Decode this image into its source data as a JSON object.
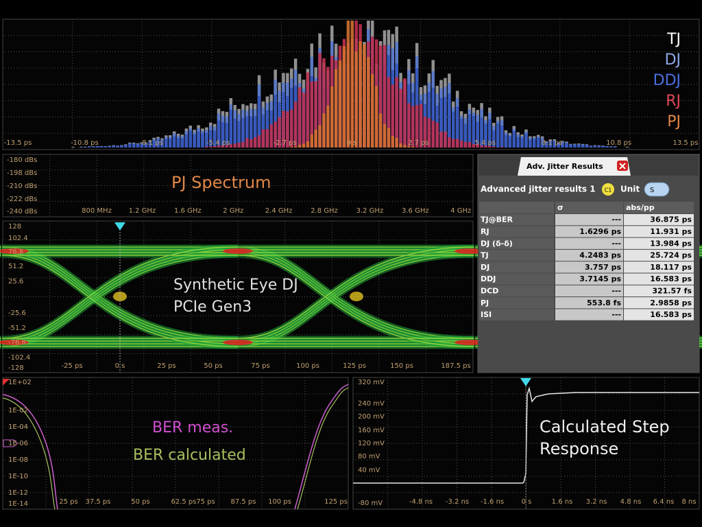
{
  "histogram": {
    "legend": [
      "TJ",
      "DJ",
      "DDJ",
      "RJ",
      "PJ"
    ],
    "x_ticks": [
      "-13.5 ps",
      "-10.8 ps",
      "-8.1 ps",
      "-5.4 ps",
      "-2.7 ps",
      "0 s",
      "2.7 ps",
      "5.4 ps",
      "8.1 ps",
      "10.8 ps",
      "13.5 ps"
    ]
  },
  "pj_spectrum": {
    "title": "PJ Spectrum",
    "y_ticks": [
      "-180 dBs",
      "-198 dBs",
      "-210 dBs",
      "-222 dBs",
      "-240 dBs"
    ],
    "x_ticks": [
      "800 MHz",
      "1.2 GHz",
      "1.6 GHz",
      "2 GHz",
      "2.4 GHz",
      "2.8 GHz",
      "3.2 GHz",
      "3.6 GHz",
      "4 GHz"
    ]
  },
  "eye": {
    "labels": [
      "Synthetic Eye DJ",
      "PCIe Gen3"
    ],
    "y_ticks": [
      "128",
      "102.4",
      "76.8",
      "51.2",
      "25.6",
      "-25.6",
      "-51.2",
      "-76.8",
      "-102.4",
      "-128"
    ],
    "x_ticks": [
      "-25 ps",
      "0 s",
      "25 ps",
      "50 ps",
      "75 ps",
      "100 ps",
      "125 ps",
      "150 ps",
      "187.5 ps"
    ]
  },
  "results": {
    "tab": "Adv. Jitter Results",
    "heading": "Advanced jitter results 1",
    "channel": "C1",
    "unit_label": "Unit",
    "unit": "S",
    "columns": [
      "σ",
      "abs/pp"
    ],
    "rows": [
      [
        "TJ@BER",
        "---",
        "36.875 ps"
      ],
      [
        "RJ",
        "1.6296 ps",
        "11.931 ps"
      ],
      [
        "DJ (δ-δ)",
        "---",
        "13.984 ps"
      ],
      [
        "TJ",
        "4.2483 ps",
        "25.724 ps"
      ],
      [
        "DJ",
        "3.757 ps",
        "18.117 ps"
      ],
      [
        "DDJ",
        "3.7145 ps",
        "16.583 ps"
      ],
      [
        "DCD",
        "---",
        "321.57 fs"
      ],
      [
        "PJ",
        "553.8 fs",
        "2.9858 ps"
      ],
      [
        "ISI",
        "---",
        "16.583 ps"
      ]
    ]
  },
  "ber": {
    "labels": [
      "BER meas.",
      "BER calculated"
    ],
    "y_ticks": [
      "1E+02",
      "1E-02",
      "1E-04",
      "1E-06",
      "1E-08",
      "1E-10",
      "1E-12",
      "1E-14"
    ],
    "x_ticks": [
      "25 ps",
      "37.5 ps",
      "50 ps",
      "62.5 ps",
      "75 ps",
      "87.5 ps",
      "100 ps",
      "125 ps"
    ]
  },
  "step": {
    "labels": [
      "Calculated Step",
      "Response"
    ],
    "y_ticks": [
      "320 mV",
      "240 mV",
      "200 mV",
      "160 mV",
      "120 mV",
      "80 mV",
      "40 mV",
      "-80 mV"
    ],
    "x_ticks": [
      "-4.8 ns",
      "-3.2 ns",
      "-1.6 ns",
      "0 s",
      "1.6 ns",
      "3.2 ns",
      "4.8 ns",
      "6.4 ns",
      "8 ns"
    ]
  }
}
